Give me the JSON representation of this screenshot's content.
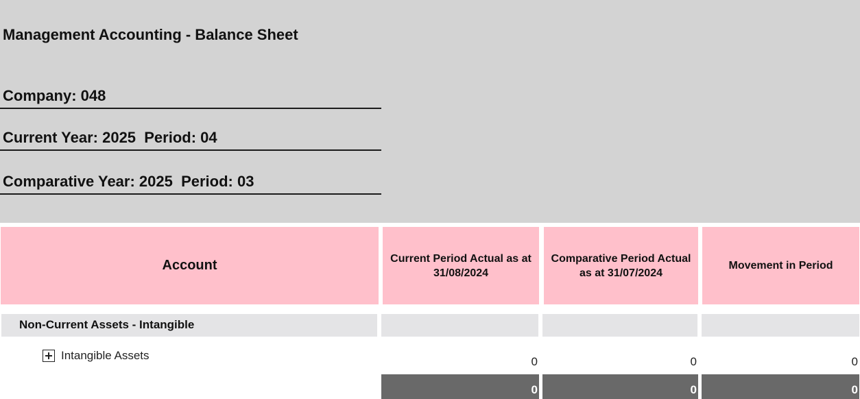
{
  "report": {
    "title": "Management Accounting - Balance Sheet",
    "company_line": "Company: 048",
    "current_line": "Current Year: 2025  Period: 04",
    "comparative_line": "Comparative Year: 2025  Period: 03"
  },
  "colors": {
    "header_panel": "#d3d3d3",
    "column_header": "#ffc0cb",
    "section_row": "#e4e4e6",
    "total_cell": "#696969"
  },
  "table": {
    "columns": [
      "Account",
      "Current Period Actual as at 31/08/2024",
      "Comparative Period Actual as at 31/07/2024",
      "Movement in Period"
    ],
    "section": {
      "label": "Non-Current Assets - Intangible"
    },
    "row": {
      "icon": "expand-plus-icon",
      "label": "Intangible Assets",
      "values": [
        "0",
        "0",
        "0"
      ]
    },
    "totals": [
      "0",
      "0",
      "0"
    ]
  }
}
